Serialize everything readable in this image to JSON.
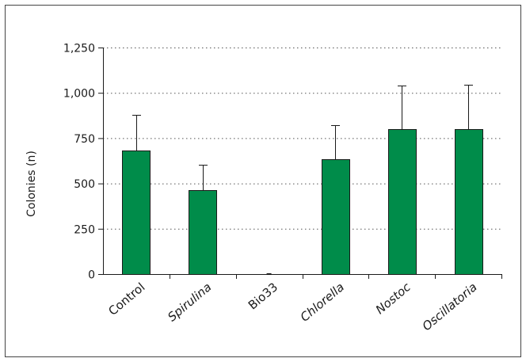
{
  "chart_data": {
    "type": "bar",
    "title": "",
    "xlabel": "",
    "ylabel": "Colonies (n)",
    "ylim": [
      0,
      1250
    ],
    "yticks": [
      0,
      250,
      500,
      750,
      1000,
      1250
    ],
    "ytick_labels": [
      "0",
      "250",
      "500",
      "750",
      "1,000",
      "1,250"
    ],
    "grid": "horizontal dotted",
    "categories": [
      "Control",
      "Spirulina",
      "Bio33",
      "Chlorella",
      "Nostoc",
      "Oscillatoria"
    ],
    "italic_categories": [
      false,
      true,
      false,
      true,
      true,
      true
    ],
    "values": [
      680,
      465,
      0,
      635,
      800,
      800
    ],
    "error_upper": [
      200,
      140,
      0,
      185,
      240,
      245
    ],
    "bar_color": "#008c4a",
    "bar_edge_color": "#1a1a1a"
  }
}
